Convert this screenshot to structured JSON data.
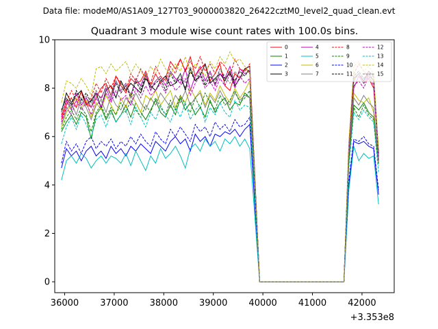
{
  "chart_data": {
    "type": "line",
    "suptitle": "Data file: modeM0/AS1A09_127T03_9000003820_26422cztM0_level2_quad_clean.evt",
    "title": "Quadrant 3 module wise count rates with 100.0s bins.",
    "xlabel": "",
    "ylabel": "",
    "x_offset_label": "+3.353e8",
    "xlim": [
      35800,
      42650
    ],
    "ylim": [
      -0.45,
      10
    ],
    "x_ticks": [
      36000,
      37000,
      38000,
      39000,
      40000,
      41000,
      42000
    ],
    "y_ticks": [
      0,
      2,
      4,
      6,
      8,
      10
    ],
    "legend_position": "top-right",
    "segments": [
      {
        "x_start": 35935,
        "x_end": 39735,
        "step": 100
      },
      {
        "x_start": 39935,
        "x_end": 41635,
        "step": 100
      },
      {
        "x_start": 41735,
        "x_end": 42335,
        "step": 100
      }
    ],
    "series": [
      {
        "name": "0",
        "color": "#ff0000",
        "dashed": false,
        "seg1": [
          6.7,
          7.3,
          7.6,
          7.2,
          7.9,
          7.4,
          7.2,
          7.6,
          8.0,
          8.2,
          7.7,
          8.5,
          8.1,
          7.8,
          8.4,
          8.2,
          8.3,
          8.7,
          8.1,
          8.6,
          8.2,
          8.4,
          9.1,
          8.8,
          9.2,
          8.7,
          9.3,
          8.5,
          8.8,
          9.0,
          8.3,
          8.6,
          9.0,
          8.1,
          7.9,
          8.6,
          8.4,
          8.8,
          8.7
        ],
        "seg3": [
          5.6,
          8.3,
          8.6,
          8.2,
          8.4,
          8.0,
          5.2
        ]
      },
      {
        "name": "1",
        "color": "#008000",
        "dashed": false,
        "seg1": [
          6.2,
          6.6,
          6.9,
          6.5,
          7.0,
          6.8,
          5.9,
          6.9,
          7.2,
          6.7,
          7.1,
          6.6,
          6.9,
          7.3,
          6.8,
          7.4,
          7.0,
          6.7,
          7.1,
          7.5,
          7.0,
          6.8,
          7.3,
          6.9,
          7.6,
          7.1,
          7.4,
          6.9,
          7.2,
          6.8,
          7.5,
          7.0,
          7.4,
          7.6,
          7.1,
          7.4,
          7.3,
          7.8,
          7.6
        ],
        "seg3": [
          5.0,
          7.3,
          7.1,
          7.4,
          7.0,
          6.8,
          4.9
        ]
      },
      {
        "name": "2",
        "color": "#0000ff",
        "dashed": false,
        "seg1": [
          4.7,
          5.5,
          5.2,
          5.4,
          5.0,
          5.4,
          5.6,
          5.2,
          5.4,
          5.1,
          5.6,
          5.3,
          5.5,
          5.2,
          5.6,
          5.4,
          5.7,
          5.5,
          5.3,
          5.8,
          5.6,
          5.4,
          5.8,
          6.0,
          5.7,
          5.9,
          5.4,
          6.1,
          5.8,
          6.0,
          5.6,
          6.1,
          6.0,
          6.2,
          6.1,
          6.3,
          6.0,
          6.3,
          6.5
        ],
        "seg3": [
          4.0,
          5.8,
          5.7,
          5.8,
          5.6,
          5.5,
          3.6
        ]
      },
      {
        "name": "3",
        "color": "#000000",
        "dashed": false,
        "seg1": [
          7.0,
          7.8,
          7.4,
          7.7,
          7.9,
          7.3,
          7.5,
          7.8,
          7.2,
          7.9,
          8.1,
          7.6,
          8.3,
          7.9,
          8.2,
          8.0,
          7.8,
          8.4,
          8.1,
          7.9,
          8.3,
          8.5,
          8.1,
          8.2,
          8.6,
          7.9,
          8.8,
          8.3,
          8.5,
          9.0,
          8.2,
          8.4,
          8.6,
          8.3,
          8.7,
          8.1,
          8.4,
          8.8,
          8.9
        ],
        "seg3": [
          5.5,
          8.4,
          8.6,
          8.3,
          8.7,
          8.5,
          5.3
        ]
      },
      {
        "name": "4",
        "color": "#bf00bf",
        "dashed": false,
        "seg1": [
          6.8,
          7.5,
          7.1,
          7.8,
          7.3,
          7.6,
          7.2,
          7.8,
          7.6,
          8.0,
          7.5,
          8.3,
          7.9,
          8.2,
          7.7,
          8.4,
          8.1,
          8.6,
          7.9,
          8.3,
          8.5,
          8.1,
          8.7,
          8.4,
          8.2,
          8.8,
          7.9,
          8.5,
          8.9,
          8.3,
          8.7,
          8.1,
          8.6,
          8.4,
          8.9,
          8.2,
          8.8,
          8.6,
          8.7
        ],
        "seg3": [
          5.4,
          8.0,
          8.5,
          8.2,
          8.6,
          8.3,
          5.1
        ]
      },
      {
        "name": "5",
        "color": "#00bfbf",
        "dashed": false,
        "seg1": [
          4.2,
          5.0,
          5.2,
          4.9,
          5.3,
          5.1,
          4.7,
          5.0,
          5.2,
          4.9,
          5.2,
          5.1,
          4.9,
          5.3,
          4.8,
          5.4,
          5.0,
          4.6,
          5.2,
          4.9,
          5.5,
          5.1,
          5.3,
          5.6,
          5.2,
          4.7,
          5.5,
          5.7,
          5.4,
          5.9,
          5.6,
          5.8,
          5.4,
          5.9,
          5.7,
          6.0,
          5.6,
          5.9,
          5.5
        ],
        "seg3": [
          3.8,
          5.6,
          5.0,
          5.3,
          5.1,
          5.2,
          3.2
        ]
      },
      {
        "name": "6",
        "color": "#bfbf00",
        "dashed": false,
        "seg1": [
          6.4,
          7.0,
          7.3,
          7.6,
          7.2,
          7.5,
          6.8,
          7.4,
          7.1,
          7.7,
          7.3,
          6.9,
          7.6,
          7.2,
          7.8,
          7.4,
          7.0,
          7.7,
          7.5,
          7.9,
          7.3,
          7.6,
          7.9,
          7.2,
          7.7,
          7.4,
          8.0,
          7.6,
          7.9,
          7.3,
          7.8,
          7.5,
          8.1,
          7.7,
          7.4,
          8.0,
          7.6,
          7.9,
          8.3
        ],
        "seg3": [
          5.2,
          7.8,
          7.5,
          7.4,
          7.6,
          7.0,
          5.0
        ]
      },
      {
        "name": "7",
        "color": "#808080",
        "dashed": false,
        "seg1": [
          6.5,
          7.1,
          7.4,
          6.9,
          7.6,
          7.2,
          6.7,
          7.3,
          7.5,
          7.0,
          7.7,
          7.3,
          7.1,
          7.6,
          7.3,
          7.8,
          7.4,
          7.1,
          7.6,
          7.3,
          7.8,
          7.5,
          7.2,
          7.7,
          7.4,
          7.9,
          7.3,
          7.6,
          7.8,
          7.2,
          7.7,
          7.4,
          7.9,
          7.5,
          7.3,
          7.8,
          7.5,
          7.7,
          7.6
        ],
        "seg3": [
          5.1,
          7.6,
          7.3,
          7.7,
          7.4,
          7.2,
          4.9
        ]
      },
      {
        "name": "8",
        "color": "#ff0000",
        "dashed": true,
        "seg1": [
          6.9,
          7.4,
          7.9,
          7.5,
          7.8,
          7.3,
          7.6,
          8.2,
          7.8,
          8.4,
          8.0,
          8.5,
          8.2,
          7.9,
          8.6,
          8.3,
          8.8,
          8.4,
          8.2,
          8.9,
          8.5,
          8.3,
          8.9,
          8.6,
          9.2,
          8.7,
          9.1,
          8.8,
          9.3,
          8.7,
          9.0,
          8.6,
          9.1,
          8.9,
          8.5,
          9.2,
          8.8,
          8.7,
          9.0
        ],
        "seg3": [
          5.7,
          8.6,
          9.0,
          8.7,
          8.4,
          8.5,
          5.2
        ]
      },
      {
        "name": "9",
        "color": "#008000",
        "dashed": true,
        "seg1": [
          6.3,
          6.8,
          7.1,
          6.7,
          7.2,
          6.9,
          6.2,
          7.0,
          7.3,
          6.8,
          7.2,
          6.9,
          7.4,
          7.0,
          7.5,
          7.1,
          6.8,
          7.3,
          7.0,
          7.6,
          7.2,
          6.9,
          7.5,
          7.1,
          7.7,
          7.3,
          7.0,
          7.6,
          7.2,
          7.8,
          7.4,
          7.1,
          7.7,
          7.3,
          7.5,
          7.9,
          7.4,
          7.6,
          7.9
        ],
        "seg3": [
          5.1,
          7.2,
          6.8,
          7.3,
          6.9,
          6.7,
          4.8
        ]
      },
      {
        "name": "10",
        "color": "#0000ff",
        "dashed": true,
        "seg1": [
          4.9,
          5.8,
          5.4,
          5.7,
          5.3,
          5.8,
          6.0,
          5.5,
          5.8,
          5.6,
          5.9,
          5.5,
          5.8,
          5.6,
          6.0,
          5.7,
          6.1,
          5.8,
          5.6,
          6.2,
          5.9,
          5.7,
          6.3,
          6.0,
          6.4,
          6.1,
          5.8,
          6.5,
          6.2,
          6.4,
          6.0,
          6.6,
          6.3,
          6.5,
          6.2,
          6.7,
          6.4,
          6.5,
          6.8
        ],
        "seg3": [
          4.2,
          5.9,
          5.8,
          6.0,
          5.7,
          5.6,
          3.8
        ]
      },
      {
        "name": "11",
        "color": "#000000",
        "dashed": true,
        "seg1": [
          7.1,
          7.6,
          7.3,
          7.9,
          7.5,
          7.8,
          7.4,
          7.9,
          7.5,
          8.1,
          7.7,
          8.2,
          7.8,
          8.1,
          7.6,
          8.3,
          7.9,
          8.5,
          8.0,
          8.2,
          8.4,
          7.9,
          8.6,
          8.2,
          8.4,
          8.0,
          8.7,
          8.3,
          8.6,
          8.1,
          8.5,
          8.2,
          8.8,
          8.4,
          8.6,
          8.3,
          8.7,
          8.5,
          8.8
        ],
        "seg3": [
          5.4,
          8.5,
          8.7,
          8.4,
          8.6,
          8.3,
          5.2
        ]
      },
      {
        "name": "12",
        "color": "#bf00bf",
        "dashed": true,
        "seg1": [
          6.6,
          7.2,
          6.9,
          7.5,
          7.1,
          7.4,
          6.9,
          7.6,
          7.2,
          7.8,
          7.4,
          7.9,
          7.5,
          7.7,
          7.3,
          8.0,
          7.6,
          8.1,
          7.7,
          7.9,
          8.2,
          7.8,
          8.3,
          7.9,
          8.1,
          8.4,
          7.7,
          8.2,
          8.5,
          8.0,
          8.3,
          7.9,
          8.4,
          8.1,
          8.6,
          8.0,
          8.5,
          8.2,
          8.4
        ],
        "seg3": [
          5.3,
          8.1,
          8.3,
          8.0,
          8.5,
          8.1,
          5.0
        ]
      },
      {
        "name": "13",
        "color": "#00bfbf",
        "dashed": true,
        "seg1": [
          5.7,
          6.4,
          6.8,
          6.3,
          6.9,
          6.5,
          6.0,
          6.7,
          6.9,
          6.4,
          7.0,
          6.6,
          6.9,
          7.1,
          6.5,
          7.2,
          6.8,
          6.4,
          7.0,
          6.7,
          7.3,
          6.9,
          6.6,
          7.2,
          6.8,
          7.4,
          6.7,
          7.1,
          7.3,
          6.6,
          7.2,
          6.9,
          7.4,
          7.0,
          6.8,
          7.5,
          7.1,
          7.3,
          7.2
        ],
        "seg3": [
          4.7,
          7.0,
          6.7,
          7.1,
          6.8,
          6.6,
          4.5
        ]
      },
      {
        "name": "14",
        "color": "#bfbf00",
        "dashed": true,
        "seg1": [
          7.4,
          8.3,
          8.2,
          8.0,
          8.4,
          8.1,
          7.7,
          8.8,
          8.9,
          8.6,
          9.0,
          8.7,
          8.9,
          9.1,
          8.6,
          9.0,
          8.7,
          8.4,
          8.9,
          8.6,
          9.2,
          8.8,
          8.5,
          9.0,
          8.7,
          9.3,
          8.6,
          9.0,
          8.8,
          8.5,
          9.1,
          8.8,
          9.3,
          9.0,
          9.5,
          9.1,
          9.2,
          8.9,
          8.6
        ],
        "seg3": [
          5.8,
          8.9,
          9.1,
          8.7,
          8.9,
          8.6,
          5.5
        ]
      },
      {
        "name": "15",
        "color": "#808080",
        "dashed": true,
        "seg1": [
          7.0,
          7.6,
          7.2,
          7.8,
          7.4,
          7.7,
          7.2,
          7.9,
          7.5,
          8.1,
          7.7,
          8.3,
          7.9,
          8.2,
          7.7,
          8.4,
          8.0,
          8.6,
          8.1,
          8.3,
          8.5,
          8.1,
          8.7,
          8.3,
          8.6,
          8.2,
          8.9,
          8.4,
          8.7,
          8.2,
          8.6,
          8.3,
          8.8,
          8.5,
          8.2,
          8.7,
          8.4,
          8.6,
          8.8
        ],
        "seg3": [
          5.5,
          8.3,
          8.6,
          8.2,
          8.5,
          8.3,
          5.1
        ]
      }
    ]
  }
}
